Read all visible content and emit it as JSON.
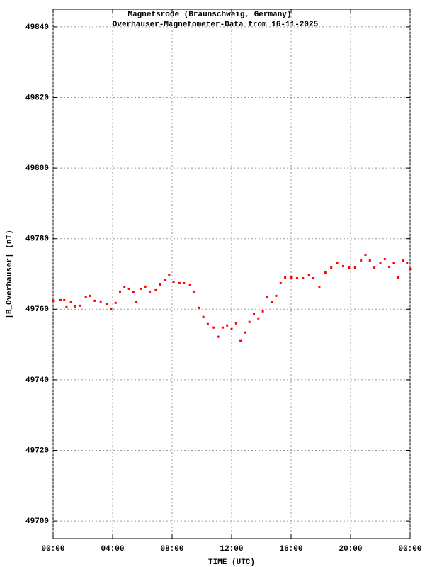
{
  "chart_data": {
    "type": "scatter",
    "title": "Magnetsrode (Braunschweig, Germany)",
    "subtitle": "Overhauser-Magnetometer-Data from 16-11-2025",
    "x_label": "TIME (UTC)",
    "y_label": "|B_Overhauser| (nT)",
    "color": "#ff0000",
    "grid": true,
    "xlim": [
      0,
      24
    ],
    "xticks": [
      {
        "value": 0,
        "label": "00:00"
      },
      {
        "value": 4,
        "label": "04:00"
      },
      {
        "value": 8,
        "label": "08:00"
      },
      {
        "value": 12,
        "label": "12:00"
      },
      {
        "value": 16,
        "label": "16:00"
      },
      {
        "value": 20,
        "label": "20:00"
      },
      {
        "value": 24,
        "label": "00:00"
      }
    ],
    "ylim": [
      49695,
      49845
    ],
    "yticks": [
      49700,
      49720,
      49740,
      49760,
      49780,
      49800,
      49820,
      49840
    ],
    "x": [
      0,
      0.5,
      0.75,
      0.9,
      1.2,
      1.5,
      1.8,
      2.2,
      2.5,
      2.8,
      3.2,
      3.6,
      3.9,
      4.2,
      4.5,
      4.8,
      5.1,
      5.4,
      5.6,
      5.9,
      6.2,
      6.5,
      6.9,
      7.2,
      7.5,
      7.8,
      8.1,
      8.5,
      8.8,
      9.2,
      9.5,
      9.8,
      10.1,
      10.4,
      10.8,
      11.1,
      11.4,
      11.7,
      12.0,
      12.3,
      12.6,
      12.9,
      13.2,
      13.5,
      13.8,
      14.1,
      14.4,
      14.7,
      15.0,
      15.3,
      15.6,
      16.0,
      16.4,
      16.8,
      17.2,
      17.5,
      17.9,
      18.3,
      18.7,
      19.1,
      19.5,
      19.9,
      20.3,
      20.7,
      21.0,
      21.3,
      21.6,
      22.0,
      22.3,
      22.6,
      22.9,
      23.2,
      23.5,
      23.8,
      24.0
    ],
    "values": [
      49762.4,
      49762.6,
      49762.6,
      49760.6,
      49762,
      49760.8,
      49761,
      49763.4,
      49763.8,
      49762.4,
      49762.2,
      49761.4,
      49760,
      49761.8,
      49765,
      49766.2,
      49765.8,
      49764.8,
      49762,
      49765.8,
      49766.4,
      49765,
      49765.4,
      49767,
      49768.2,
      49769.6,
      49767.8,
      49767.4,
      49767.4,
      49766.8,
      49765,
      49760.4,
      49757.8,
      49755.8,
      49754.8,
      49752.2,
      49754.8,
      49755.4,
      49754.4,
      49756,
      49751,
      49753.4,
      49756.4,
      49758.6,
      49757.4,
      49759.4,
      49763.4,
      49762,
      49763.8,
      49767.4,
      49769,
      49769,
      49768.8,
      49768.8,
      49769.8,
      49768.8,
      49766.4,
      49770.4,
      49771.8,
      49773.2,
      49772.2,
      49771.8,
      49771.8,
      49773.8,
      49775.4,
      49773.8,
      49771.8,
      49773,
      49774.2,
      49772,
      49773,
      49769,
      49773.8,
      49773,
      49771.4
    ]
  }
}
